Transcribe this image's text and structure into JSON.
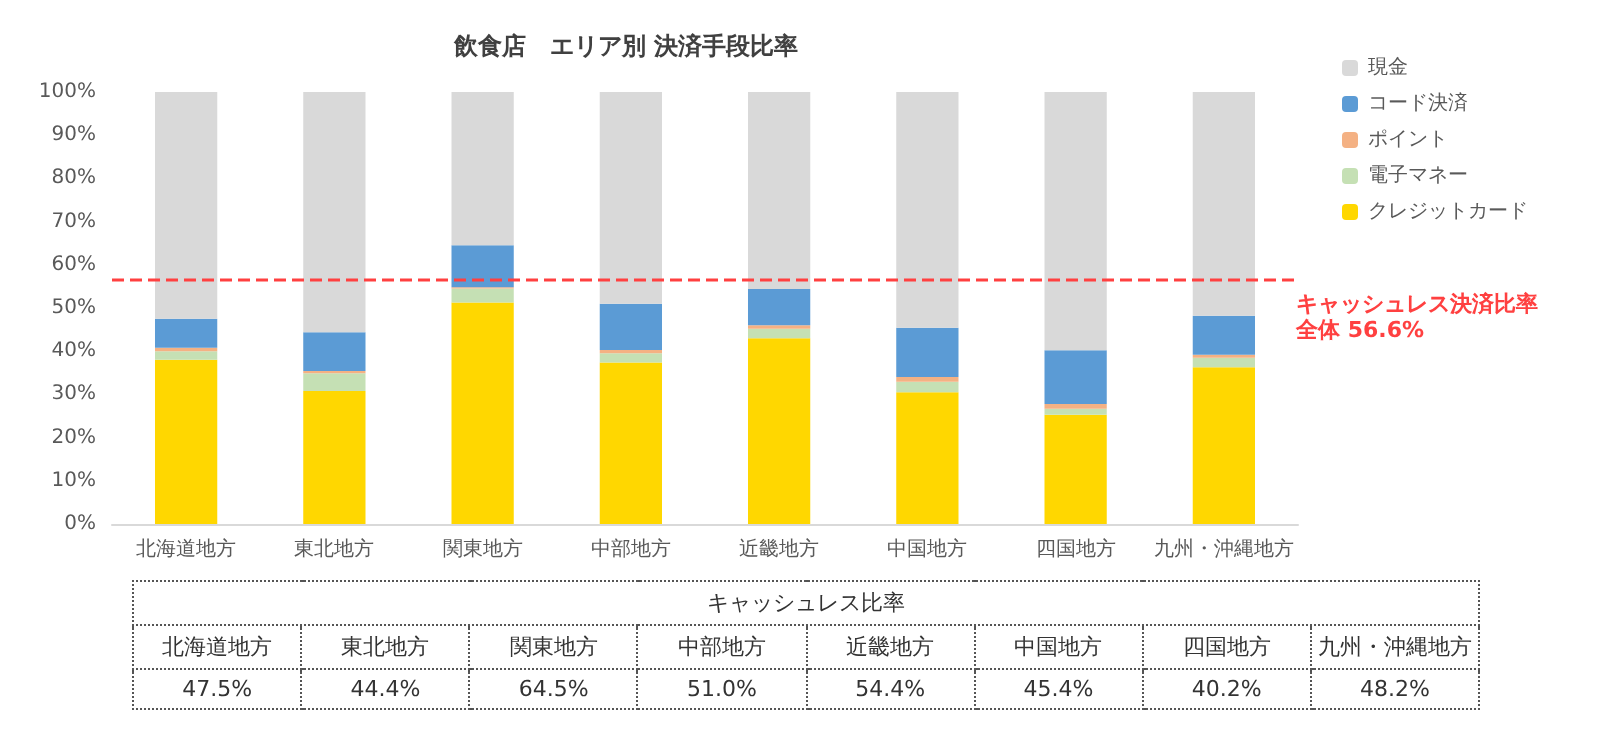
{
  "chart_data": {
    "type": "bar",
    "title": "飲食店　エリア別 決済手段比率",
    "stacked": true,
    "categories": [
      "北海道地方",
      "東北地方",
      "関東地方",
      "中部地方",
      "近畿地方",
      "中国地方",
      "四国地方",
      "九州・沖縄地方"
    ],
    "series": [
      {
        "name": "クレジットカード",
        "color": "#ffd700",
        "values": [
          38.0,
          30.8,
          51.3,
          37.4,
          43.0,
          30.5,
          25.3,
          36.3
        ]
      },
      {
        "name": "電子マネー",
        "color": "#c5e0b4",
        "values": [
          2.0,
          4.1,
          3.2,
          2.1,
          2.2,
          2.4,
          1.4,
          2.2
        ]
      },
      {
        "name": "ポイント",
        "color": "#f4b183",
        "values": [
          0.8,
          0.5,
          0.3,
          0.8,
          0.8,
          1.1,
          1.1,
          0.7
        ]
      },
      {
        "name": "コード決済",
        "color": "#5b9bd5",
        "values": [
          6.7,
          9.0,
          9.7,
          10.7,
          8.4,
          11.4,
          12.4,
          9.0
        ]
      },
      {
        "name": "現金",
        "color": "#d9d9d9",
        "values": [
          52.5,
          55.6,
          35.5,
          49.0,
          45.6,
          54.6,
          59.8,
          51.8
        ]
      }
    ],
    "ylim": [
      0,
      100
    ],
    "yticks": [
      {
        "value": 0,
        "label": "0%"
      },
      {
        "value": 10,
        "label": "10%"
      },
      {
        "value": 20,
        "label": "20%"
      },
      {
        "value": 30,
        "label": "30%"
      },
      {
        "value": 40,
        "label": "40%"
      },
      {
        "value": 50,
        "label": "50%"
      },
      {
        "value": 60,
        "label": "60%"
      },
      {
        "value": 70,
        "label": "70%"
      },
      {
        "value": 80,
        "label": "80%"
      },
      {
        "value": 90,
        "label": "90%"
      },
      {
        "value": 100,
        "label": "100%"
      }
    ],
    "grid": false,
    "legend": "right",
    "ref_lines": [
      {
        "axis": "y",
        "value": 56.6,
        "label": "キャッシュレス決済比率全体 56.6%",
        "color": "#ff4040",
        "line_style": "dashed"
      }
    ],
    "annotations": [
      "キャッシュレス比率",
      "47.5%",
      "44.4%",
      "64.5%",
      "51.0%",
      "54.4%",
      "45.4%",
      "40.2%",
      "48.2%"
    ]
  }
}
